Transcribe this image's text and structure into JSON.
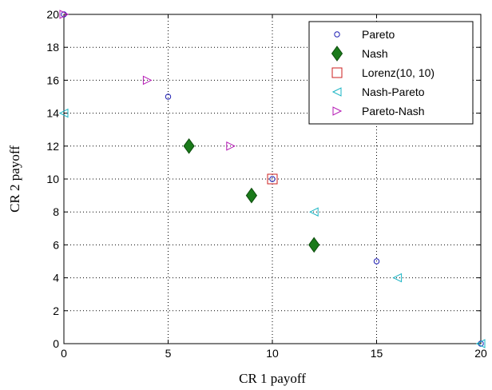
{
  "chart_data": {
    "type": "scatter",
    "xlabel": "CR 1 payoff",
    "ylabel": "CR 2 payoff",
    "xlim": [
      0,
      20
    ],
    "ylim": [
      0,
      20
    ],
    "xticks": [
      "0",
      "5",
      "10",
      "15",
      "20"
    ],
    "yticks": [
      "0",
      "2",
      "4",
      "6",
      "8",
      "10",
      "12",
      "14",
      "16",
      "18",
      "20"
    ],
    "grid": true,
    "legend_position": "top-right",
    "series": [
      {
        "name": "Pareto",
        "marker": "circle",
        "color": "#1f1fb4",
        "points": [
          [
            0,
            20
          ],
          [
            5,
            15
          ],
          [
            10,
            10
          ],
          [
            15,
            5
          ],
          [
            20,
            0
          ]
        ]
      },
      {
        "name": "Nash",
        "marker": "diamond",
        "color": "#1a7a1a",
        "points": [
          [
            6,
            12
          ],
          [
            9,
            9
          ],
          [
            12,
            6
          ]
        ]
      },
      {
        "name": "Lorenz(10, 10)",
        "marker": "square",
        "color": "#cc1f1f",
        "points": [
          [
            10,
            10
          ]
        ]
      },
      {
        "name": "Nash-Pareto",
        "marker": "triangle-left",
        "color": "#19b4c4",
        "points": [
          [
            0,
            14
          ],
          [
            12,
            8
          ],
          [
            16,
            4
          ],
          [
            20,
            0
          ]
        ]
      },
      {
        "name": "Pareto-Nash",
        "marker": "triangle-right",
        "color": "#b419b4",
        "points": [
          [
            0,
            20
          ],
          [
            4,
            16
          ],
          [
            8,
            12
          ]
        ]
      }
    ]
  }
}
